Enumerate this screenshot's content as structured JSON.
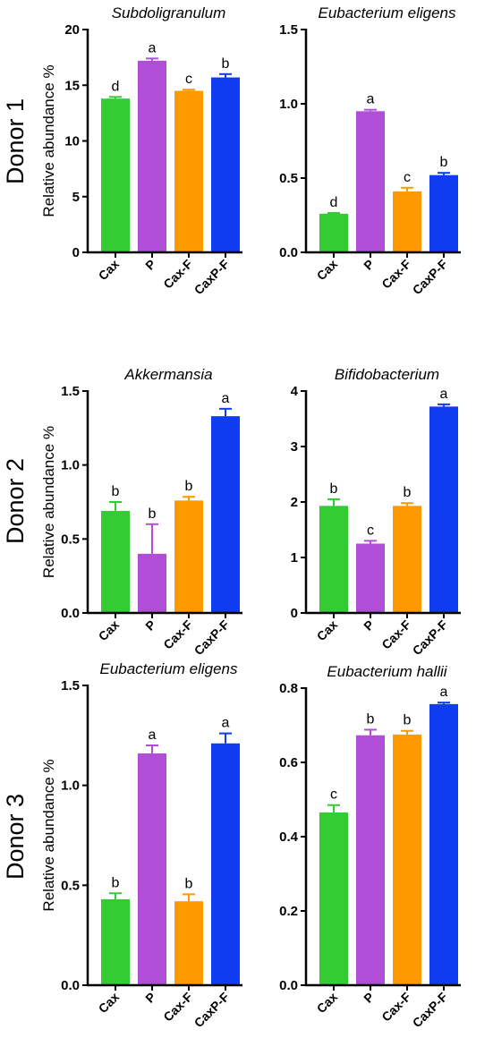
{
  "colors": {
    "Cax": "#33cc33",
    "P": "#b14ed8",
    "Cax-F": "#ff9900",
    "CaxP-F": "#0f3cf0"
  },
  "donors": [
    "Donor 1",
    "Donor 2",
    "Donor 3"
  ],
  "chart_data": [
    {
      "type": "bar",
      "title": "Subdoligranulum",
      "ylabel": "Relative abundance %",
      "categories": [
        "Cax",
        "P",
        "Cax-F",
        "CaxP-F"
      ],
      "values": [
        13.8,
        17.2,
        14.5,
        15.7
      ],
      "errors": [
        0.15,
        0.2,
        0.1,
        0.3
      ],
      "letters": [
        "d",
        "a",
        "c",
        "b"
      ],
      "ylim": [
        0,
        20
      ],
      "yticks": [
        "0",
        "5",
        "10",
        "15",
        "20"
      ]
    },
    {
      "type": "bar",
      "title": "Eubacterium  eligens",
      "ylabel": "",
      "categories": [
        "Cax",
        "P",
        "Cax-F",
        "CaxP-F"
      ],
      "values": [
        0.26,
        0.95,
        0.41,
        0.52
      ],
      "errors": [
        0.005,
        0.01,
        0.025,
        0.015
      ],
      "letters": [
        "d",
        "a",
        "c",
        "b"
      ],
      "ylim": [
        0,
        1.5
      ],
      "yticks": [
        "0.0",
        "0.5",
        "1.0",
        "1.5"
      ]
    },
    {
      "type": "bar",
      "title": "Akkermansia",
      "ylabel": "Relative abundance %",
      "categories": [
        "Cax",
        "P",
        "Cax-F",
        "CaxP-F"
      ],
      "values": [
        0.69,
        0.4,
        0.76,
        1.33
      ],
      "errors": [
        0.06,
        0.2,
        0.025,
        0.05
      ],
      "letters": [
        "b",
        "b",
        "b",
        "a"
      ],
      "ylim": [
        0,
        1.5
      ],
      "yticks": [
        "0.0",
        "0.5",
        "1.0",
        "1.5"
      ]
    },
    {
      "type": "bar",
      "title": "Bifidobacterium",
      "ylabel": "",
      "categories": [
        "Cax",
        "P",
        "Cax-F",
        "CaxP-F"
      ],
      "values": [
        1.93,
        1.25,
        1.93,
        3.72
      ],
      "errors": [
        0.12,
        0.05,
        0.05,
        0.04
      ],
      "letters": [
        "b",
        "c",
        "b",
        "a"
      ],
      "ylim": [
        0,
        4
      ],
      "yticks": [
        "0",
        "1",
        "2",
        "3",
        "4"
      ]
    },
    {
      "type": "bar",
      "title": "Eubacterium  eligens",
      "ylabel": "Relative abundance %",
      "categories": [
        "Cax",
        "P",
        "Cax-F",
        "CaxP-F"
      ],
      "values": [
        0.43,
        1.16,
        0.42,
        1.21
      ],
      "errors": [
        0.03,
        0.04,
        0.035,
        0.05
      ],
      "letters": [
        "b",
        "a",
        "b",
        "a"
      ],
      "ylim": [
        0,
        1.5
      ],
      "yticks": [
        "0.0",
        "0.5",
        "1.0",
        "1.5"
      ]
    },
    {
      "type": "bar",
      "title": "Eubacterium  hallii",
      "ylabel": "",
      "categories": [
        "Cax",
        "P",
        "Cax-F",
        "CaxP-F"
      ],
      "values": [
        0.465,
        0.673,
        0.675,
        0.757
      ],
      "errors": [
        0.02,
        0.015,
        0.01,
        0.004
      ],
      "letters": [
        "c",
        "b",
        "b",
        "a"
      ],
      "ylim": [
        0,
        0.8
      ],
      "yticks": [
        "0.0",
        "0.2",
        "0.4",
        "0.6",
        "0.8"
      ]
    }
  ]
}
